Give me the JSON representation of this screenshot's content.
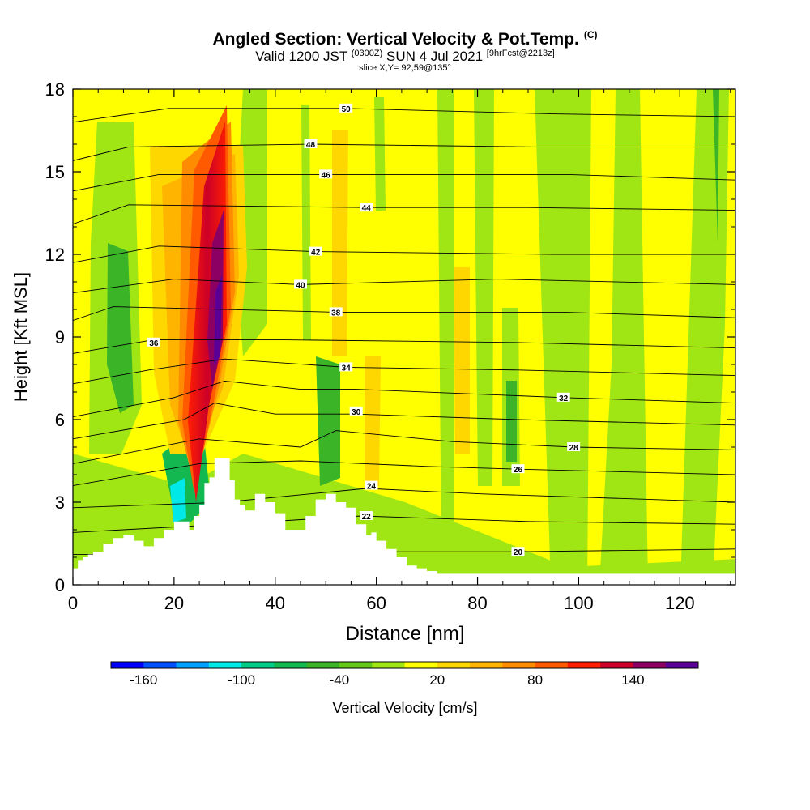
{
  "chart_data": {
    "type": "heatmap",
    "title": "Angled Section: Vertical Velocity & Pot.Temp.",
    "title_mark": "(C)",
    "subtitle_a": "Valid 1200 JST",
    "subtitle_b": "(0300Z)",
    "subtitle_c": "SUN 4 Jul 2021",
    "subtitle_d": "[9hrFcst@2213z]",
    "slice_label": "slice X,Y= 92,59@135°",
    "xlabel": "Distance [nm]",
    "ylabel": "Height [Kft MSL]",
    "xlim": [
      0,
      131
    ],
    "ylim": [
      0,
      18
    ],
    "xticks": [
      "0",
      "20",
      "40",
      "60",
      "80",
      "100",
      "120"
    ],
    "yticks": [
      "0",
      "3",
      "6",
      "9",
      "12",
      "15",
      "18"
    ],
    "colorbar": {
      "label": "Vertical Velocity [cm/s]",
      "ticks": [
        "-160",
        "-100",
        "-40",
        "20",
        "80",
        "140"
      ],
      "colors": [
        "#0000ff",
        "#0050ff",
        "#00a0ff",
        "#00e8e8",
        "#00cc88",
        "#14b850",
        "#3cb428",
        "#64c818",
        "#a0e614",
        "#ffff00",
        "#ffd700",
        "#ffb400",
        "#ff8c00",
        "#ff5a00",
        "#ff1e00",
        "#cc0028",
        "#8c0064",
        "#5a0096"
      ]
    },
    "terrain_profile": {
      "x": [
        0,
        1,
        2,
        3,
        4,
        6,
        8,
        10,
        12,
        14,
        16,
        18,
        20,
        22,
        23,
        24,
        25,
        26,
        27,
        28,
        29,
        30,
        31,
        32,
        33,
        34,
        36,
        38,
        40,
        42,
        44,
        46,
        48,
        50,
        52,
        54,
        56,
        58,
        59,
        60,
        62,
        64,
        66,
        68,
        70,
        72,
        131
      ],
      "height": [
        0.6,
        0.9,
        1.0,
        1.1,
        1.2,
        1.5,
        1.7,
        1.8,
        1.6,
        1.4,
        1.7,
        2.0,
        2.3,
        2.3,
        2.0,
        2.5,
        2.9,
        3.7,
        3.9,
        4.6,
        4.6,
        4.6,
        3.8,
        3.1,
        2.9,
        2.7,
        3.3,
        3.0,
        2.6,
        2.0,
        2.0,
        2.5,
        3.1,
        3.3,
        3.0,
        2.8,
        2.2,
        1.8,
        1.9,
        1.6,
        1.3,
        1.0,
        0.7,
        0.6,
        0.5,
        0.4,
        0.3
      ]
    },
    "theta_contours": [
      {
        "label": "20",
        "pts": [
          [
            0,
            1.1
          ],
          [
            30,
            1.1
          ],
          [
            60,
            1.2
          ],
          [
            88,
            1.2
          ],
          [
            131,
            1.3
          ]
        ],
        "label_at": [
          88,
          1.2
        ]
      },
      {
        "label": "22",
        "pts": [
          [
            0,
            1.9
          ],
          [
            30,
            2.2
          ],
          [
            57,
            2.5
          ],
          [
            90,
            2.3
          ],
          [
            131,
            2.2
          ]
        ],
        "label_at": [
          58,
          2.5
        ]
      },
      {
        "label": "24",
        "pts": [
          [
            0,
            2.8
          ],
          [
            30,
            3.0
          ],
          [
            58,
            3.5
          ],
          [
            81,
            3.3
          ],
          [
            131,
            3.0
          ]
        ],
        "label_at": [
          59,
          3.6
        ]
      },
      {
        "label": "26",
        "pts": [
          [
            0,
            3.6
          ],
          [
            25,
            4.4
          ],
          [
            45,
            4.5
          ],
          [
            70,
            4.3
          ],
          [
            88,
            4.2
          ],
          [
            131,
            4.0
          ]
        ],
        "label_at": [
          88,
          4.2
        ]
      },
      {
        "label": "28",
        "pts": [
          [
            0,
            4.4
          ],
          [
            25,
            5.3
          ],
          [
            45,
            5.0
          ],
          [
            52,
            5.6
          ],
          [
            75,
            5.2
          ],
          [
            99,
            5.0
          ],
          [
            131,
            4.9
          ]
        ],
        "label_at": [
          99,
          5.0
        ]
      },
      {
        "label": "30",
        "pts": [
          [
            0,
            5.3
          ],
          [
            22,
            6.0
          ],
          [
            28,
            6.6
          ],
          [
            40,
            6.2
          ],
          [
            56,
            6.2
          ],
          [
            88,
            6.0
          ],
          [
            131,
            5.8
          ]
        ],
        "label_at": [
          56,
          6.3
        ]
      },
      {
        "label": "32",
        "pts": [
          [
            0,
            6.1
          ],
          [
            20,
            6.8
          ],
          [
            30,
            7.4
          ],
          [
            45,
            7.1
          ],
          [
            56,
            7.1
          ],
          [
            97,
            6.8
          ],
          [
            131,
            6.6
          ]
        ],
        "label_at": [
          97,
          6.8
        ]
      },
      {
        "label": "34",
        "pts": [
          [
            0,
            7.3
          ],
          [
            15,
            7.8
          ],
          [
            30,
            8.2
          ],
          [
            54,
            7.9
          ],
          [
            88,
            7.8
          ],
          [
            131,
            7.6
          ]
        ],
        "label_at": [
          54,
          7.9
        ]
      },
      {
        "label": "36",
        "pts": [
          [
            0,
            8.4
          ],
          [
            16,
            8.9
          ],
          [
            40,
            8.9
          ],
          [
            87,
            8.8
          ],
          [
            131,
            8.6
          ]
        ],
        "label_at": [
          16,
          8.8
        ]
      },
      {
        "label": "38",
        "pts": [
          [
            0,
            9.6
          ],
          [
            8,
            10.1
          ],
          [
            52,
            9.9
          ],
          [
            97,
            9.9
          ],
          [
            131,
            9.7
          ]
        ],
        "label_at": [
          52,
          9.9
        ]
      },
      {
        "label": "40",
        "pts": [
          [
            0,
            10.6
          ],
          [
            20,
            11.1
          ],
          [
            45,
            10.9
          ],
          [
            84,
            11.1
          ],
          [
            131,
            10.9
          ]
        ],
        "label_at": [
          45,
          10.9
        ]
      },
      {
        "label": "42",
        "pts": [
          [
            0,
            11.7
          ],
          [
            17,
            12.3
          ],
          [
            48,
            12.1
          ],
          [
            95,
            12.0
          ],
          [
            131,
            12.0
          ]
        ],
        "label_at": [
          48,
          12.1
        ]
      },
      {
        "label": "44",
        "pts": [
          [
            0,
            13.1
          ],
          [
            11,
            13.8
          ],
          [
            58,
            13.7
          ],
          [
            90,
            13.7
          ],
          [
            131,
            13.6
          ]
        ],
        "label_at": [
          58,
          13.7
        ]
      },
      {
        "label": "46",
        "pts": [
          [
            0,
            14.3
          ],
          [
            17,
            14.9
          ],
          [
            50,
            14.9
          ],
          [
            98,
            14.9
          ],
          [
            131,
            14.7
          ]
        ],
        "label_at": [
          50,
          14.9
        ]
      },
      {
        "label": "48",
        "pts": [
          [
            0,
            15.4
          ],
          [
            11,
            15.9
          ],
          [
            47,
            16.0
          ],
          [
            92,
            15.9
          ],
          [
            131,
            15.9
          ]
        ],
        "label_at": [
          47,
          16.0
        ]
      },
      {
        "label": "50",
        "pts": [
          [
            0,
            16.8
          ],
          [
            19,
            17.3
          ],
          [
            54,
            17.3
          ],
          [
            95,
            17.1
          ],
          [
            131,
            17.0
          ]
        ],
        "label_at": [
          54,
          17.3
        ]
      }
    ]
  }
}
